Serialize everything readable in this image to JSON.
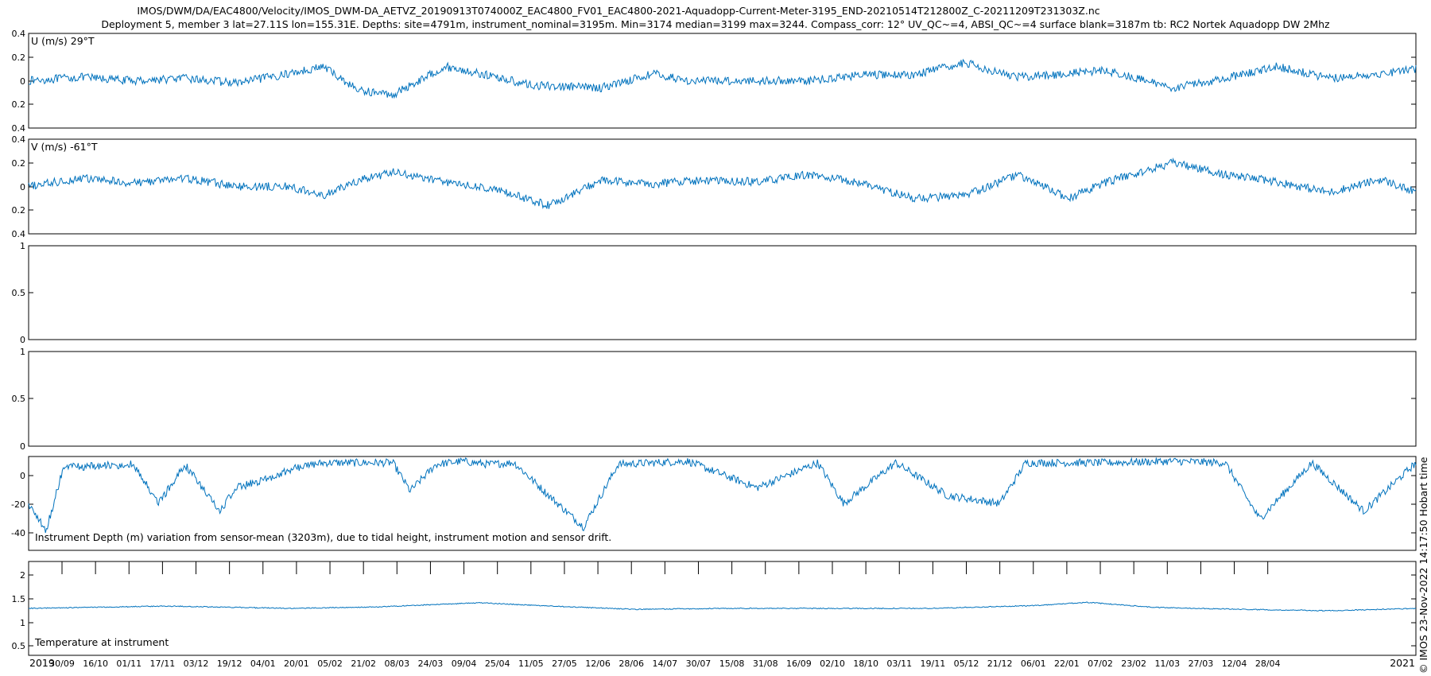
{
  "title_line1": "IMOS/DWM/DA/EAC4800/Velocity/IMOS_DWM-DA_AETVZ_20190913T074000Z_EAC4800_FV01_EAC4800-2021-Aquadopp-Current-Meter-3195_END-20210514T212800Z_C-20211209T231303Z.nc",
  "title_line2": "Deployment 5, member 3 lat=27.11S lon=155.31E. Depths: site=4791m, instrument_nominal=3195m. Min=3174 median=3199 max=3244. Compass_corr: 12° UV_QC~=4, ABSI_QC~=4 surface blank=3187m tb: RC2 Nortek Aquadopp DW 2Mhz",
  "credit": "© IMOS 23-Nov-2022 14:17:50 Hobart time",
  "colors": {
    "line": "#0072BD",
    "axis": "#000000",
    "background": "#ffffff"
  },
  "x_axis": {
    "year_start": "2019",
    "year_end": "2021",
    "ticks": [
      "30/09",
      "16/10",
      "01/11",
      "17/11",
      "03/12",
      "19/12",
      "04/01",
      "20/01",
      "05/02",
      "21/02",
      "08/03",
      "24/03",
      "09/04",
      "25/04",
      "11/05",
      "27/05",
      "12/06",
      "28/06",
      "14/07",
      "30/07",
      "15/08",
      "31/08",
      "16/09",
      "02/10",
      "18/10",
      "03/11",
      "19/11",
      "05/12",
      "21/12",
      "06/01",
      "22/01",
      "07/02",
      "23/02",
      "11/03",
      "27/03",
      "12/04",
      "28/04"
    ]
  },
  "chart_data": [
    {
      "type": "line",
      "label": "U (m/s) 29°T",
      "yticks": [
        "0.4",
        "0.2",
        "0",
        "0.2",
        "0.4"
      ],
      "ylim": [
        -0.4,
        0.4
      ],
      "x": [
        0,
        30,
        60,
        90,
        120,
        150,
        170,
        190,
        210,
        240,
        270,
        290,
        330,
        360,
        380,
        420,
        450,
        480,
        510,
        540,
        570,
        600,
        620,
        660,
        690,
        720,
        750,
        780,
        800
      ],
      "values": [
        0.0,
        0.03,
        0.0,
        0.02,
        -0.02,
        0.06,
        0.12,
        -0.08,
        -0.12,
        0.12,
        0.03,
        -0.04,
        -0.06,
        0.06,
        0.0,
        0.0,
        0.0,
        0.05,
        0.05,
        0.15,
        0.03,
        0.06,
        0.09,
        -0.06,
        0.02,
        0.12,
        0.02,
        0.06,
        0.1
      ]
    },
    {
      "type": "line",
      "label": "V (m/s) -61°T",
      "yticks": [
        "0.4",
        "0.2",
        "0",
        "0.2",
        "0.4"
      ],
      "ylim": [
        -0.4,
        0.4
      ],
      "x": [
        0,
        30,
        60,
        90,
        120,
        150,
        170,
        190,
        210,
        240,
        270,
        300,
        330,
        360,
        380,
        420,
        450,
        480,
        510,
        540,
        570,
        600,
        620,
        660,
        690,
        720,
        750,
        780,
        800
      ],
      "values": [
        0.0,
        0.07,
        0.03,
        0.07,
        0.0,
        0.0,
        -0.08,
        0.05,
        0.12,
        0.04,
        -0.03,
        -0.16,
        0.05,
        0.02,
        0.05,
        0.04,
        0.1,
        0.03,
        -0.1,
        -0.08,
        0.1,
        -0.1,
        0.03,
        0.2,
        0.1,
        0.04,
        -0.05,
        0.06,
        -0.05
      ]
    },
    {
      "type": "line",
      "label": "",
      "yticks": [
        "1",
        "0.5",
        "0"
      ],
      "ylim": [
        0,
        1
      ],
      "x": [],
      "values": []
    },
    {
      "type": "line",
      "label": "",
      "yticks": [
        "1",
        "0.5",
        "0"
      ],
      "ylim": [
        0,
        1
      ],
      "x": [],
      "values": []
    },
    {
      "type": "line",
      "label": "Instrument Depth (m) variation from sensor-mean (3203m), due to tidal height, instrument motion and sensor drift.",
      "yticks": [
        "0",
        "-20",
        "-40"
      ],
      "ylim": [
        -50,
        10
      ],
      "x": [
        0,
        10,
        20,
        40,
        60,
        75,
        90,
        110,
        120,
        135,
        155,
        170,
        190,
        210,
        220,
        235,
        250,
        265,
        280,
        300,
        320,
        340,
        380,
        420,
        455,
        470,
        500,
        530,
        560,
        575,
        600,
        620,
        660,
        690,
        710,
        740,
        770,
        800
      ],
      "values": [
        -20,
        -38,
        3,
        4,
        5,
        -20,
        5,
        -25,
        -10,
        -5,
        3,
        6,
        6,
        6,
        -12,
        5,
        7,
        5,
        6,
        -15,
        -35,
        5,
        7,
        -10,
        6,
        -20,
        6,
        -15,
        -20,
        6,
        6,
        6,
        7,
        6,
        -30,
        6,
        -25,
        6
      ]
    },
    {
      "type": "line",
      "label": "Temperature at instrument",
      "yticks": [
        "2",
        "1.5",
        "1",
        "0.5"
      ],
      "ylim": [
        0.3,
        2.3
      ],
      "x": [
        0,
        80,
        150,
        200,
        260,
        300,
        350,
        400,
        460,
        520,
        580,
        610,
        650,
        700,
        750,
        800
      ],
      "values": [
        1.3,
        1.35,
        1.3,
        1.33,
        1.42,
        1.35,
        1.28,
        1.3,
        1.3,
        1.3,
        1.36,
        1.43,
        1.32,
        1.28,
        1.25,
        1.3
      ]
    }
  ]
}
